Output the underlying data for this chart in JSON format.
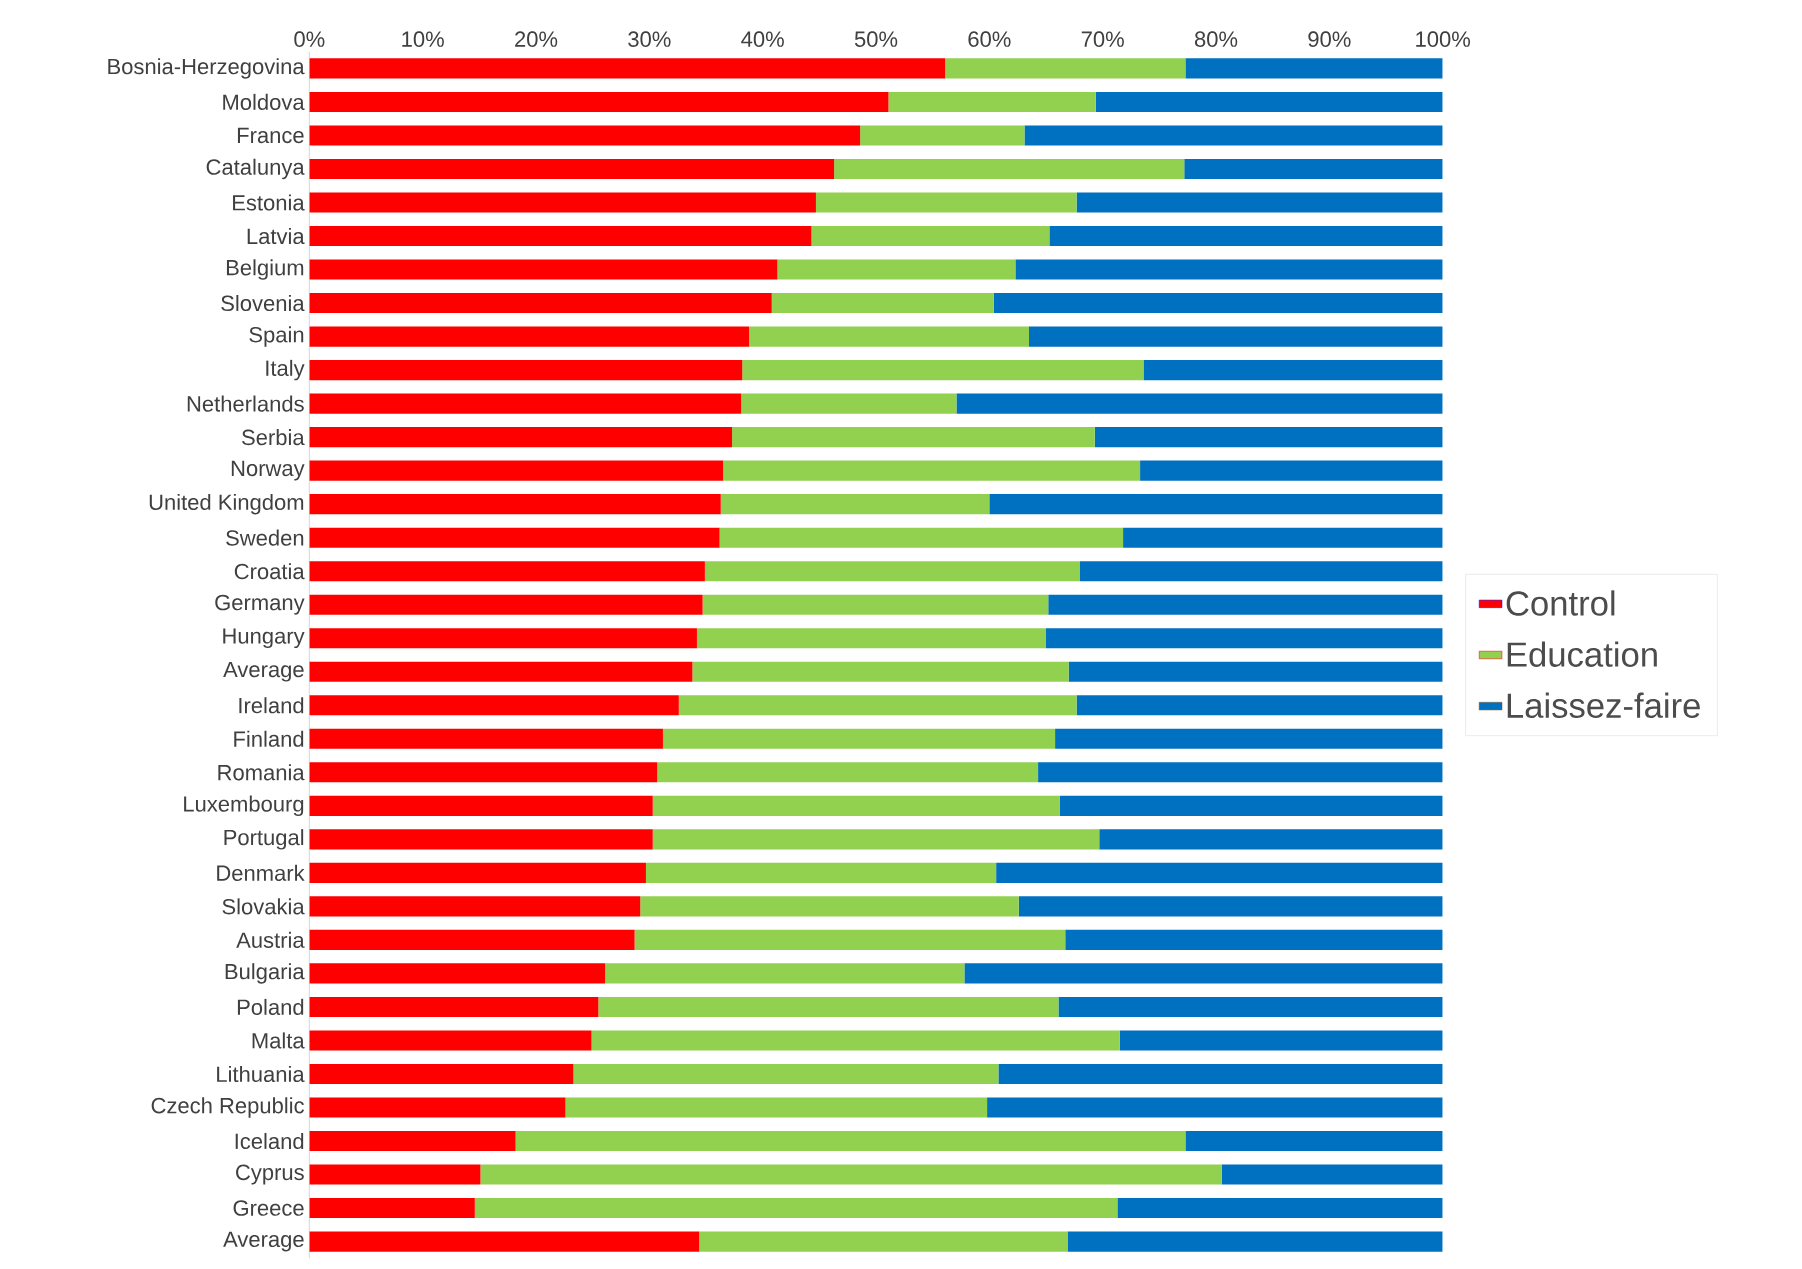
{
  "chart_data": {
    "type": "bar",
    "orientation": "horizontal",
    "stacked": true,
    "legend": "right",
    "categories": [
      "Bosnia-Herzegovina",
      "Moldova",
      "France",
      "Catalunya",
      "Estonia",
      "Latvia",
      "Belgium",
      "Slovenia",
      "Spain",
      "Italy",
      "Netherlands",
      "Serbia",
      "Norway",
      "United Kingdom",
      "Sweden",
      "Croatia",
      "Germany",
      "Hungary",
      "Average",
      "Ireland",
      "Finland",
      "Romania",
      "Luxembourg",
      "Portugal",
      "Denmark",
      "Slovakia",
      "Austria",
      "Bulgaria",
      "Poland",
      "Malta",
      "Lithuania",
      "Czech Republic",
      "Iceland",
      "Cyprus",
      "Greece",
      "Average"
    ],
    "xlim": [
      0,
      100
    ],
    "xticks": [
      {
        "value": 0,
        "label": "0%"
      },
      {
        "value": 10,
        "label": "10%"
      },
      {
        "value": 20,
        "label": "20%"
      },
      {
        "value": 30,
        "label": "30%"
      },
      {
        "value": 40,
        "label": "40%"
      },
      {
        "value": 50,
        "label": "50%"
      },
      {
        "value": 60,
        "label": "60%"
      },
      {
        "value": 70,
        "label": "70%"
      },
      {
        "value": 80,
        "label": "80%"
      },
      {
        "value": 90,
        "label": "90%"
      },
      {
        "value": 100,
        "label": "100%"
      }
    ],
    "series": [
      {
        "name": "Control",
        "color": "#ff0000",
        "values": [
          56.1,
          51.1,
          48.6,
          46.3,
          44.7,
          44.3,
          41.3,
          40.8,
          38.8,
          38.2,
          38.1,
          37.3,
          36.5,
          36.3,
          36.2,
          34.9,
          34.7,
          34.2,
          33.8,
          32.6,
          31.2,
          30.7,
          30.3,
          30.3,
          29.7,
          29.2,
          28.7,
          26.1,
          25.5,
          24.9,
          23.3,
          22.6,
          18.2,
          15.1,
          14.6,
          34.4
        ]
      },
      {
        "name": "Education",
        "color": "#92d050",
        "values": [
          21.2,
          18.3,
          14.5,
          30.9,
          23.0,
          21.0,
          21.0,
          19.6,
          24.7,
          35.4,
          19.0,
          32.0,
          36.8,
          23.7,
          35.6,
          33.1,
          30.5,
          30.8,
          33.2,
          35.1,
          34.6,
          33.6,
          35.9,
          39.4,
          30.9,
          33.4,
          38.0,
          31.7,
          40.6,
          46.6,
          37.5,
          37.2,
          59.1,
          65.4,
          56.7,
          32.5
        ]
      },
      {
        "name": "Laissez-faire",
        "color": "#0070c0",
        "values": [
          22.7,
          30.6,
          36.9,
          22.8,
          32.3,
          34.7,
          37.7,
          39.6,
          36.5,
          26.4,
          42.9,
          30.7,
          26.7,
          40.0,
          28.2,
          32.0,
          34.8,
          35.0,
          33.0,
          32.3,
          34.2,
          35.7,
          33.8,
          30.3,
          39.4,
          37.4,
          33.3,
          42.2,
          33.9,
          28.5,
          39.2,
          40.2,
          22.7,
          19.5,
          28.7,
          33.1
        ]
      }
    ]
  }
}
